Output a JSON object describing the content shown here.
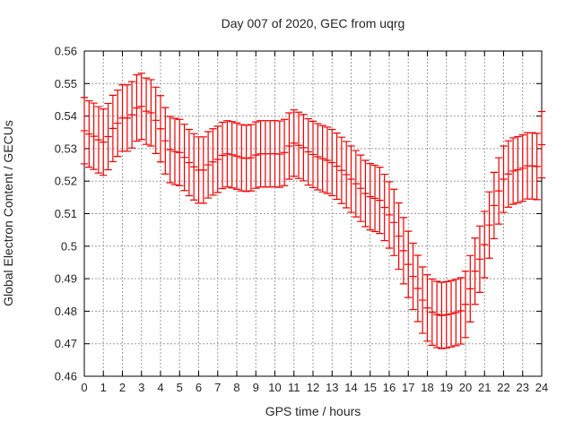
{
  "chart_data": {
    "type": "scatter",
    "style": "yerrorbars",
    "title": "Day 007 of 2020, GEC from uqrg",
    "xlabel": "GPS time / hours",
    "ylabel": "Global Electron Content / GECUs",
    "xlim": [
      0,
      24
    ],
    "ylim": [
      0.46,
      0.56
    ],
    "grid": true,
    "legend": "none",
    "x_tick_labels": [
      "0",
      "1",
      "2",
      "3",
      "4",
      "5",
      "6",
      "7",
      "8",
      "9",
      "10",
      "11",
      "12",
      "13",
      "14",
      "15",
      "16",
      "17",
      "18",
      "19",
      "20",
      "21",
      "22",
      "23",
      "24"
    ],
    "y_tick_labels": [
      "0.46",
      "0.47",
      "0.48",
      "0.49",
      "0.5",
      "0.51",
      "0.52",
      "0.53",
      "0.54",
      "0.55",
      "0.56"
    ],
    "yerr_half_width": 0.0102,
    "x": [
      0,
      0.25,
      0.5,
      0.75,
      1,
      1.25,
      1.5,
      1.75,
      2,
      2.25,
      2.5,
      2.75,
      3,
      3.25,
      3.5,
      3.75,
      4,
      4.25,
      4.5,
      4.75,
      5,
      5.25,
      5.5,
      5.75,
      6,
      6.25,
      6.5,
      6.75,
      7,
      7.25,
      7.5,
      7.75,
      8,
      8.25,
      8.5,
      8.75,
      9,
      9.25,
      9.5,
      9.75,
      10,
      10.25,
      10.5,
      10.75,
      11,
      11.25,
      11.5,
      11.75,
      12,
      12.25,
      12.5,
      12.75,
      13,
      13.25,
      13.5,
      13.75,
      14,
      14.25,
      14.5,
      14.75,
      15,
      15.25,
      15.5,
      15.75,
      16,
      16.25,
      16.5,
      16.75,
      17,
      17.25,
      17.5,
      17.75,
      18,
      18.25,
      18.5,
      18.75,
      19,
      19.25,
      19.5,
      19.75,
      20,
      20.25,
      20.5,
      20.75,
      21,
      21.25,
      21.5,
      21.75,
      22,
      22.25,
      22.5,
      22.75,
      23,
      23.25,
      23.5,
      23.75,
      24
    ],
    "y": [
      0.5355,
      0.5345,
      0.5338,
      0.5327,
      0.532,
      0.5337,
      0.5362,
      0.5378,
      0.5394,
      0.5394,
      0.5404,
      0.5425,
      0.543,
      0.5415,
      0.541,
      0.5387,
      0.5361,
      0.5324,
      0.5297,
      0.5291,
      0.5288,
      0.5273,
      0.5257,
      0.5244,
      0.5234,
      0.5234,
      0.525,
      0.5259,
      0.5267,
      0.5279,
      0.5284,
      0.5281,
      0.5277,
      0.5272,
      0.527,
      0.5272,
      0.528,
      0.5284,
      0.5284,
      0.5284,
      0.5284,
      0.5283,
      0.5288,
      0.5308,
      0.5317,
      0.531,
      0.5303,
      0.529,
      0.5282,
      0.5275,
      0.5269,
      0.5264,
      0.5257,
      0.5246,
      0.5233,
      0.522,
      0.5206,
      0.5192,
      0.5178,
      0.5162,
      0.5152,
      0.5147,
      0.5141,
      0.5119,
      0.5096,
      0.5073,
      0.5031,
      0.4986,
      0.4944,
      0.4907,
      0.487,
      0.4834,
      0.481,
      0.4797,
      0.479,
      0.4787,
      0.4789,
      0.4792,
      0.4796,
      0.4801,
      0.4821,
      0.4869,
      0.4923,
      0.496,
      0.5005,
      0.5065,
      0.5125,
      0.517,
      0.5206,
      0.5222,
      0.5231,
      0.5235,
      0.524,
      0.5247,
      0.5247,
      0.5245,
      0.5312
    ],
    "colors": {
      "bars": "#ee0000",
      "grid": "#9e9e9e",
      "border": "#000000",
      "text": "#262626"
    }
  }
}
